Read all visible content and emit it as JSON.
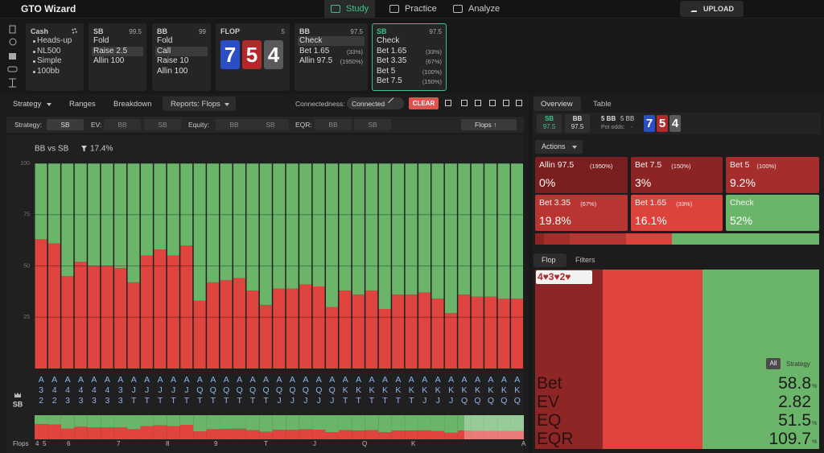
{
  "header": {
    "brand": "GTO Wizard",
    "nav": [
      "Study",
      "Practice",
      "Analyze"
    ],
    "nav_active": 0,
    "upload": "UPLOAD"
  },
  "action_bar": {
    "game": {
      "title": "Cash",
      "items": [
        "Heads-up",
        "NL500",
        "Simple",
        "100bb"
      ]
    },
    "nodes": [
      {
        "player": "SB",
        "stack": "99.5",
        "options": [
          {
            "label": "Fold"
          },
          {
            "label": "Raise 2.5",
            "selected": true
          },
          {
            "label": "Allin 100"
          }
        ]
      },
      {
        "player": "BB",
        "stack": "99",
        "options": [
          {
            "label": "Fold"
          },
          {
            "label": "Call",
            "selected": true
          },
          {
            "label": "Raise 10"
          },
          {
            "label": "Allin 100"
          }
        ]
      },
      {
        "player": "BB",
        "stack": "97.5",
        "options": [
          {
            "label": "Check",
            "selected": true
          },
          {
            "label": "Bet 1.65",
            "size": "(33%)"
          },
          {
            "label": "Allin 97.5",
            "size": "(1950%)"
          }
        ]
      },
      {
        "player": "SB",
        "stack": "97.5",
        "active": true,
        "options": [
          {
            "label": "Check"
          },
          {
            "label": "Bet 1.65",
            "size": "(33%)"
          },
          {
            "label": "Bet 3.35",
            "size": "(67%)"
          },
          {
            "label": "Bet 5",
            "size": "(100%)"
          },
          {
            "label": "Bet 7.5",
            "size": "(150%)"
          }
        ]
      }
    ],
    "flop": {
      "title": "FLOP",
      "pot": "5",
      "cards": [
        {
          "rank": "7",
          "color": "#2a4fc4"
        },
        {
          "rank": "5",
          "color": "#b3282a"
        },
        {
          "rank": "4",
          "color": "#5a5a5a"
        }
      ]
    }
  },
  "tabs": {
    "items": [
      "Strategy",
      "Ranges",
      "Breakdown",
      "Reports: Flops"
    ],
    "active": 3,
    "connectedness_label": "Connectedness:",
    "connectedness_value": "Connected",
    "clear": "CLEAR"
  },
  "filters": {
    "groups": [
      {
        "label": "Strategy:",
        "options": [
          "SB"
        ]
      },
      {
        "label": "EV:",
        "options": [
          "BB",
          "SB"
        ]
      },
      {
        "label": "Equity:",
        "options": [
          "BB",
          "SB"
        ]
      },
      {
        "label": "EQR:",
        "options": [
          "BB",
          "SB"
        ]
      }
    ],
    "sort": "Flops ↑"
  },
  "chart_data": {
    "type": "bar",
    "stacked": true,
    "title": "BB vs SB",
    "subtitle": "17.4%",
    "categories": [
      "A32",
      "A42",
      "A43",
      "A43",
      "A43",
      "A43",
      "A33",
      "AJT",
      "AJT",
      "AJT",
      "AJT",
      "AJT",
      "AQT",
      "AQT",
      "AQT",
      "AQT",
      "AQT",
      "AQT",
      "AQJ",
      "AQJ",
      "AQJ",
      "AQJ",
      "AQJ",
      "AKT",
      "AKT",
      "AKT",
      "AKT",
      "AKT",
      "AKT",
      "AKJ",
      "AKJ",
      "AKJ",
      "AKQ",
      "AKQ",
      "AKQ",
      "AKQ",
      "AKQ"
    ],
    "series": [
      {
        "name": "Bet",
        "color": "#e0443e",
        "values": [
          63,
          61,
          45,
          52,
          50,
          50,
          49,
          42,
          55,
          58,
          55,
          60,
          33,
          42,
          43,
          44,
          38,
          31,
          39,
          39,
          41,
          40,
          30,
          38,
          36,
          38,
          29,
          36,
          36,
          37,
          34,
          27,
          36,
          35,
          35,
          34,
          34
        ]
      },
      {
        "name": "Check",
        "color": "#6bb56b",
        "values": [
          37,
          39,
          55,
          48,
          50,
          50,
          51,
          58,
          45,
          42,
          45,
          40,
          67,
          58,
          57,
          56,
          62,
          69,
          61,
          61,
          59,
          60,
          70,
          62,
          64,
          62,
          71,
          64,
          64,
          63,
          66,
          73,
          64,
          65,
          65,
          66,
          66
        ]
      }
    ],
    "ylim": [
      0,
      100
    ],
    "yticks": [
      25,
      50,
      75,
      100
    ],
    "grid": true,
    "y_axis_label": "SB",
    "x_axis_label": "Flops",
    "x_axis_ranks": [
      "4",
      "5",
      "6",
      "7",
      "8",
      "9",
      "T",
      "J",
      "Q",
      "K",
      "A"
    ]
  },
  "overview": {
    "tabs": [
      "Overview",
      "Table"
    ],
    "players": [
      {
        "name": "SB",
        "stack": "97.5"
      },
      {
        "name": "BB",
        "stack": "97.5"
      }
    ],
    "pot": "5 BB",
    "pot_total": "5 BB",
    "pot_odds_label": "Pot odds:",
    "pot_odds": "-",
    "board": [
      {
        "rank": "7",
        "color": "#2a4fc4"
      },
      {
        "rank": "5",
        "color": "#b3282a"
      },
      {
        "rank": "4",
        "color": "#5a5a5a"
      }
    ]
  },
  "actions": {
    "title": "Actions",
    "items": [
      {
        "name": "Allin 97.5",
        "size": "(1950%)",
        "freq": 0,
        "freq_label": "0%",
        "color": "#7a1f1f"
      },
      {
        "name": "Bet 7.5",
        "size": "(150%)",
        "freq": 3,
        "freq_label": "3%",
        "color": "#8c2424"
      },
      {
        "name": "Bet 5",
        "size": "(100%)",
        "freq": 9.2,
        "freq_label": "9.2%",
        "color": "#a52d2b"
      },
      {
        "name": "Bet 3.35",
        "size": "(67%)",
        "freq": 19.8,
        "freq_label": "19.8%",
        "color": "#b83532"
      },
      {
        "name": "Bet 1.65",
        "size": "(33%)",
        "freq": 16.1,
        "freq_label": "16.1%",
        "color": "#dc433d"
      },
      {
        "name": "Check",
        "freq": 52,
        "freq_label": "52%",
        "color": "#6bb56b"
      }
    ]
  },
  "hand": {
    "tabs": [
      "Flop",
      "Filters"
    ],
    "hand": "4♥3♥2♥",
    "toggle": [
      "All",
      "Strategy"
    ],
    "stats": [
      {
        "name": "Bet",
        "value": 58.8,
        "unit": "%"
      },
      {
        "name": "EV",
        "value": 2.82
      },
      {
        "name": "EQ",
        "value": 51.5,
        "unit": "%"
      },
      {
        "name": "EQR",
        "value": 109.7,
        "unit": "%"
      }
    ]
  }
}
